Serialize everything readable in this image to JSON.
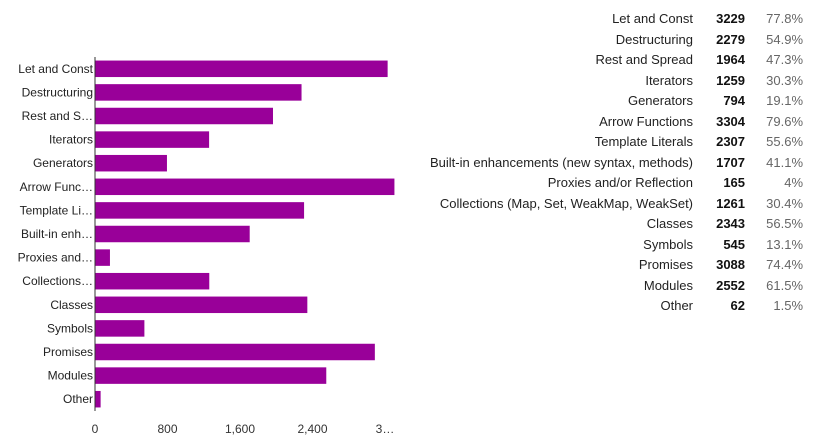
{
  "chart_data": {
    "type": "bar",
    "orientation": "horizontal",
    "categories": [
      "Let and Const",
      "Destructuring",
      "Rest and S…",
      "Iterators",
      "Generators",
      "Arrow Func…",
      "Template Li…",
      "Built-in enh…",
      "Proxies and…",
      "Collections…",
      "Classes",
      "Symbols",
      "Promises",
      "Modules",
      "Other"
    ],
    "values": [
      3229,
      2279,
      1964,
      1259,
      794,
      3304,
      2307,
      1707,
      165,
      1261,
      2343,
      545,
      3088,
      2552,
      62
    ],
    "xlim": [
      0,
      3200
    ],
    "xticks": [
      "0",
      "800",
      "1,600",
      "2,400",
      "3…"
    ],
    "xtick_values": [
      0,
      800,
      1600,
      2400,
      3200
    ],
    "grid": false,
    "bar_color": "#990099"
  },
  "table": {
    "rows": [
      {
        "label": "Let and Const",
        "count": "3229",
        "percent": "77.8%"
      },
      {
        "label": "Destructuring",
        "count": "2279",
        "percent": "54.9%"
      },
      {
        "label": "Rest and Spread",
        "count": "1964",
        "percent": "47.3%"
      },
      {
        "label": "Iterators",
        "count": "1259",
        "percent": "30.3%"
      },
      {
        "label": "Generators",
        "count": "794",
        "percent": "19.1%"
      },
      {
        "label": "Arrow Functions",
        "count": "3304",
        "percent": "79.6%"
      },
      {
        "label": "Template Literals",
        "count": "2307",
        "percent": "55.6%"
      },
      {
        "label": "Built-in enhancements (new syntax, methods)",
        "count": "1707",
        "percent": "41.1%"
      },
      {
        "label": "Proxies and/or Reflection",
        "count": "165",
        "percent": "4%"
      },
      {
        "label": "Collections (Map, Set, WeakMap, WeakSet)",
        "count": "1261",
        "percent": "30.4%"
      },
      {
        "label": "Classes",
        "count": "2343",
        "percent": "56.5%"
      },
      {
        "label": "Symbols",
        "count": "545",
        "percent": "13.1%"
      },
      {
        "label": "Promises",
        "count": "3088",
        "percent": "74.4%"
      },
      {
        "label": "Modules",
        "count": "2552",
        "percent": "61.5%"
      },
      {
        "label": "Other",
        "count": "62",
        "percent": "1.5%"
      }
    ]
  }
}
